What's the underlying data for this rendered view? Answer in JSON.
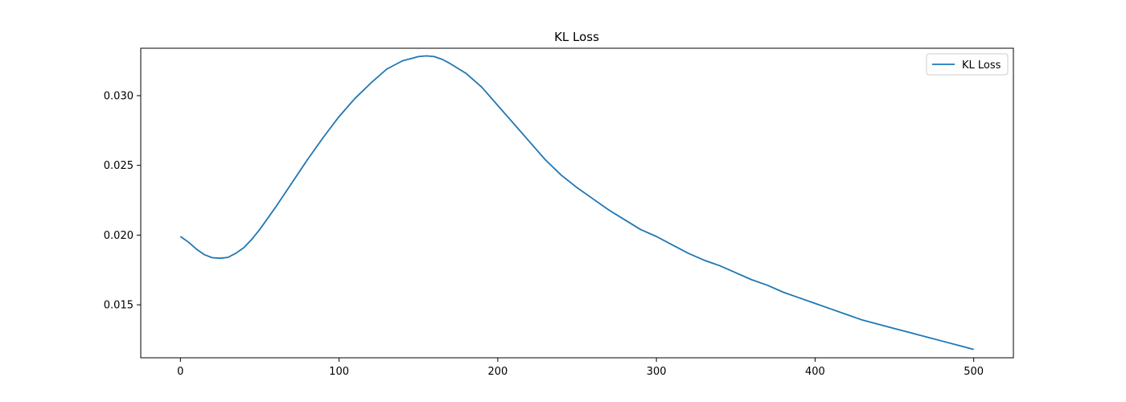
{
  "chart_data": {
    "type": "line",
    "title": "KL Loss",
    "xlabel": "",
    "ylabel": "",
    "xlim": [
      -25,
      525
    ],
    "ylim": [
      0.0112,
      0.0334
    ],
    "xticks": [
      0,
      100,
      200,
      300,
      400,
      500
    ],
    "yticks": [
      0.015,
      0.02,
      0.025,
      0.03
    ],
    "xtick_labels": [
      "0",
      "100",
      "200",
      "300",
      "400",
      "500"
    ],
    "ytick_labels": [
      "0.015",
      "0.020",
      "0.025",
      "0.030"
    ],
    "grid": false,
    "legend_position": "upper right",
    "series": [
      {
        "name": "KL Loss",
        "color": "#1f77b4",
        "x": [
          0,
          5,
          10,
          15,
          20,
          25,
          30,
          35,
          40,
          45,
          50,
          60,
          70,
          80,
          90,
          100,
          110,
          120,
          130,
          140,
          150,
          155,
          160,
          165,
          170,
          180,
          190,
          200,
          210,
          220,
          230,
          240,
          250,
          260,
          270,
          280,
          290,
          300,
          310,
          320,
          330,
          340,
          350,
          360,
          370,
          380,
          390,
          400,
          410,
          420,
          430,
          440,
          450,
          460,
          470,
          480,
          490,
          500
        ],
        "values": [
          0.0199,
          0.0195,
          0.019,
          0.0186,
          0.01838,
          0.01834,
          0.0184,
          0.0187,
          0.0191,
          0.0197,
          0.0204,
          0.022,
          0.0237,
          0.0254,
          0.027,
          0.0285,
          0.0298,
          0.0309,
          0.0319,
          0.0325,
          0.0328,
          0.03285,
          0.0328,
          0.0326,
          0.0323,
          0.0316,
          0.0306,
          0.0293,
          0.028,
          0.0267,
          0.0254,
          0.0243,
          0.0234,
          0.0226,
          0.0218,
          0.0211,
          0.0204,
          0.0199,
          0.0193,
          0.0187,
          0.0182,
          0.0178,
          0.0173,
          0.0168,
          0.0164,
          0.0159,
          0.0155,
          0.0151,
          0.0147,
          0.0143,
          0.0139,
          0.0136,
          0.0133,
          0.013,
          0.0127,
          0.0124,
          0.0121,
          0.0118
        ]
      }
    ]
  }
}
